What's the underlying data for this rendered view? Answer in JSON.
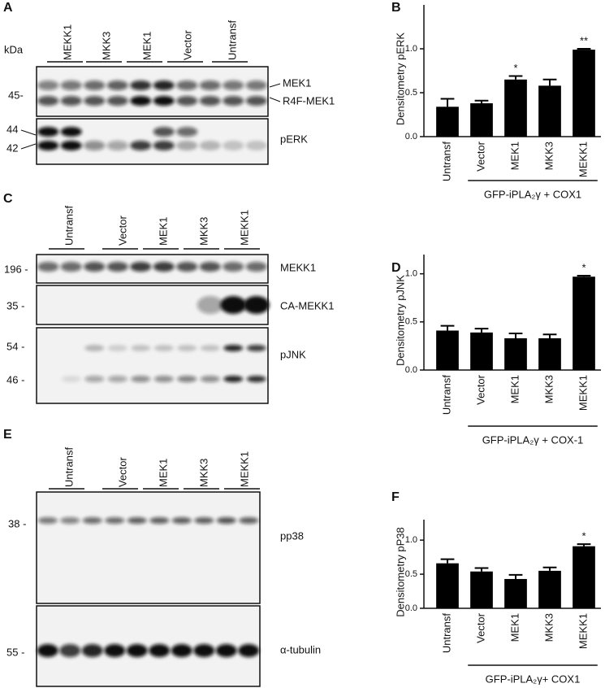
{
  "blots": [
    {
      "panel": "A",
      "kda": "kDa",
      "lanes": [
        "MEKK1",
        "MKK3",
        "MEK1",
        "Vector",
        "Untransf"
      ],
      "markers": [
        "45-",
        "44",
        "42"
      ],
      "band_labels": [
        "MEK1",
        "R4F-MEK1",
        "pERK"
      ]
    },
    {
      "panel": "C",
      "lanes": [
        "Untransf",
        "Vector",
        "MEK1",
        "MKK3",
        "MEKK1"
      ],
      "markers": [
        "196 -",
        "35 -",
        "54 -",
        "46 -"
      ],
      "band_labels": [
        "MEKK1",
        "CA-MEKK1",
        "pJNK"
      ]
    },
    {
      "panel": "E",
      "lanes": [
        "Untransf",
        "Vector",
        "MEK1",
        "MKK3",
        "MEKK1"
      ],
      "markers": [
        "38 -",
        "55 -"
      ],
      "band_labels": [
        "pp38",
        "α-tubulin"
      ]
    }
  ],
  "chart_data": [
    {
      "type": "bar",
      "panel": "B",
      "ylabel": "Densitometry pERK",
      "categories": [
        "Untransf",
        "Vector",
        "MEK1",
        "MKK3",
        "MEKK1"
      ],
      "values": [
        0.34,
        0.38,
        0.65,
        0.58,
        0.99
      ],
      "errors": [
        0.09,
        0.03,
        0.04,
        0.07,
        0.01
      ],
      "annotations": [
        null,
        null,
        "*",
        null,
        "**"
      ],
      "group_label": "GFP-iPLA₂γ + COX1",
      "color": "#000000",
      "ylim": [
        0,
        1.5
      ],
      "yticks": [
        {
          "value": 0,
          "label": "0.0"
        },
        {
          "value": 0.5,
          "label": "0.5"
        },
        {
          "value": 1,
          "label": "1.0"
        }
      ]
    },
    {
      "type": "bar",
      "panel": "D",
      "ylabel": "Densitometry pJNK",
      "categories": [
        "Untransf",
        "Vector",
        "MEK1",
        "MKK3",
        "MEKK1"
      ],
      "values": [
        0.41,
        0.39,
        0.33,
        0.33,
        0.97
      ],
      "errors": [
        0.05,
        0.04,
        0.05,
        0.04,
        0.01
      ],
      "annotations": [
        null,
        null,
        null,
        null,
        "*"
      ],
      "group_label": "GFP-iPLA₂γ + COX-1",
      "color": "#000000",
      "ylim": [
        0,
        1.2
      ],
      "yticks": [
        {
          "value": 0,
          "label": "0.0"
        },
        {
          "value": 0.5,
          "label": "0.5"
        },
        {
          "value": 1,
          "label": "1.0"
        }
      ]
    },
    {
      "type": "bar",
      "panel": "F",
      "ylabel": "Densitometry pP38",
      "categories": [
        "Untransf",
        "Vector",
        "MEK1",
        "MKK3",
        "MEKK1"
      ],
      "values": [
        0.66,
        0.54,
        0.43,
        0.55,
        0.91
      ],
      "errors": [
        0.06,
        0.05,
        0.06,
        0.05,
        0.03
      ],
      "annotations": [
        null,
        null,
        null,
        null,
        "*"
      ],
      "group_label": "GFP-iPLA₂γ+ COX1",
      "color": "#000000",
      "ylim": [
        0,
        1.3
      ],
      "yticks": [
        {
          "value": 0,
          "label": "0.0"
        },
        {
          "value": 0.5,
          "label": "0.5"
        },
        {
          "value": 1,
          "label": "1.0"
        }
      ]
    }
  ]
}
